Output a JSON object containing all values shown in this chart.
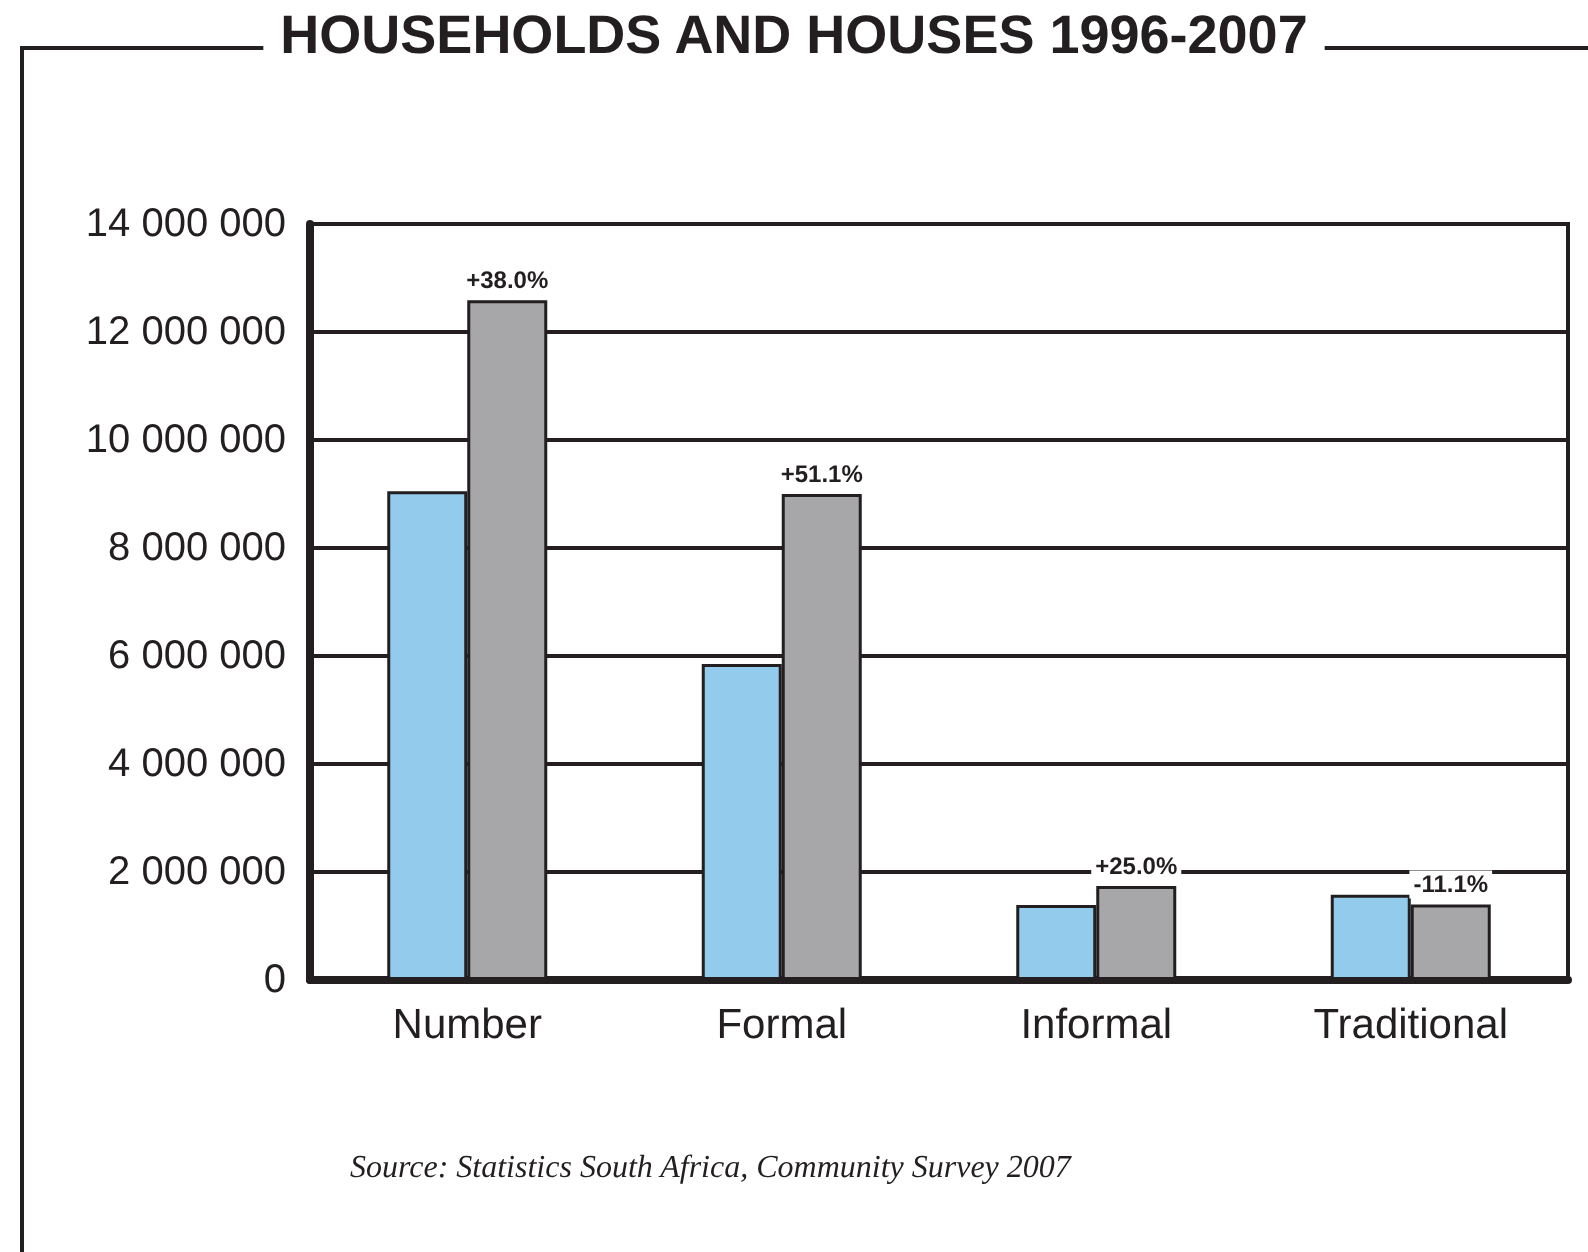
{
  "chart_data": {
    "type": "bar",
    "title": "HOUSEHOLDS AND HOUSES 1996-2007",
    "categories": [
      "Number",
      "Formal",
      "Informal",
      "Traditional"
    ],
    "series": [
      {
        "color": "#92cbec",
        "values": [
          9050000,
          5850000,
          1390000,
          1580000
        ]
      },
      {
        "color": "#a7a6a8",
        "values": [
          12590000,
          9000000,
          1740000,
          1400000
        ]
      }
    ],
    "ylim": [
      0,
      14000000
    ],
    "yticks": [
      0,
      2000000,
      4000000,
      6000000,
      8000000,
      10000000,
      12000000,
      14000000
    ],
    "grid": "y",
    "annotations": [
      {
        "text": "+38.0%",
        "x": "Number",
        "y": 12590000
      },
      {
        "text": "+51.1%",
        "x": "Formal",
        "y": 9000000
      },
      {
        "text": "+25.0%",
        "x": "Informal",
        "y": 1740000
      },
      {
        "text": "-11.1%",
        "x": "Traditional",
        "y": 1400000
      },
      "Source: Statistics South Africa, Community Survey 2007"
    ]
  }
}
